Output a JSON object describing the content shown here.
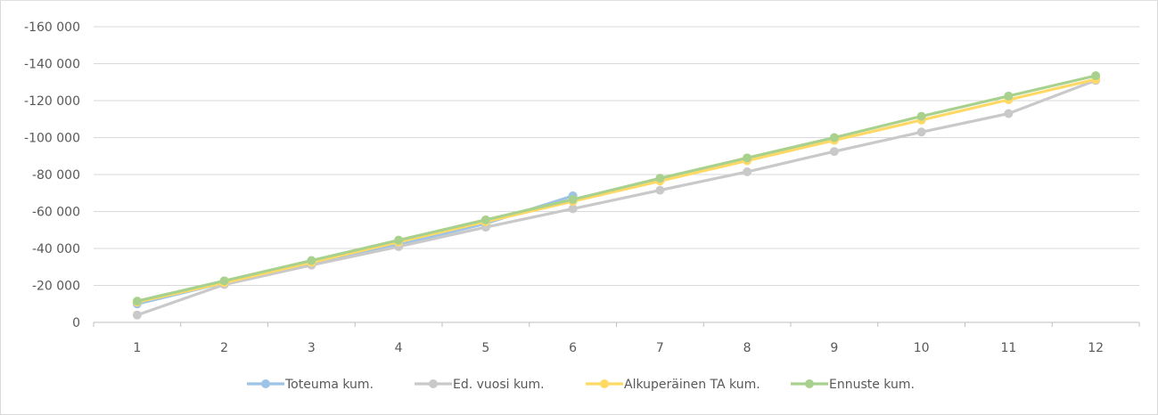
{
  "chart_data": {
    "type": "line",
    "title": "",
    "xlabel": "",
    "ylabel": "",
    "x": [
      1,
      2,
      3,
      4,
      5,
      6,
      7,
      8,
      9,
      10,
      11,
      12
    ],
    "x_tick_labels": [
      "1",
      "2",
      "3",
      "4",
      "5",
      "6",
      "7",
      "8",
      "9",
      "10",
      "11",
      "12"
    ],
    "y_ticks": [
      0,
      -20000,
      -40000,
      -60000,
      -80000,
      -100000,
      -120000,
      -140000,
      -160000
    ],
    "y_tick_labels": [
      "0",
      "-20 000",
      "-40 000",
      "-60 000",
      "-80 000",
      "-100 000",
      "-120 000",
      "-140 000",
      "-160 000"
    ],
    "y_axis_reversed": true,
    "ylim": [
      0,
      -160000
    ],
    "grid": true,
    "legend_position": "bottom",
    "series": [
      {
        "name": "Toteuma kum.",
        "color": "#9dc3e6",
        "values": [
          -10000,
          -21500,
          -32500,
          -42000,
          -53500,
          -68500,
          null,
          null,
          null,
          null,
          null,
          null
        ]
      },
      {
        "name": "Ed. vuosi kum.",
        "color": "#c9c9c9",
        "values": [
          -4000,
          -20500,
          -31000,
          -41000,
          -51500,
          -61500,
          -71500,
          -81500,
          -92500,
          -103000,
          -113000,
          -131000
        ]
      },
      {
        "name": "Alkuperäinen TA kum.",
        "color": "#ffd966",
        "values": [
          -11000,
          -21500,
          -32500,
          -43500,
          -54500,
          -65500,
          -76500,
          -87500,
          -98500,
          -109500,
          -120500,
          -131500
        ]
      },
      {
        "name": "Ennuste kum.",
        "color": "#a9d18e",
        "values": [
          -11500,
          -22500,
          -33500,
          -44500,
          -55500,
          -66500,
          -78000,
          -89000,
          -100000,
          -111500,
          -122500,
          -133500
        ]
      }
    ]
  }
}
